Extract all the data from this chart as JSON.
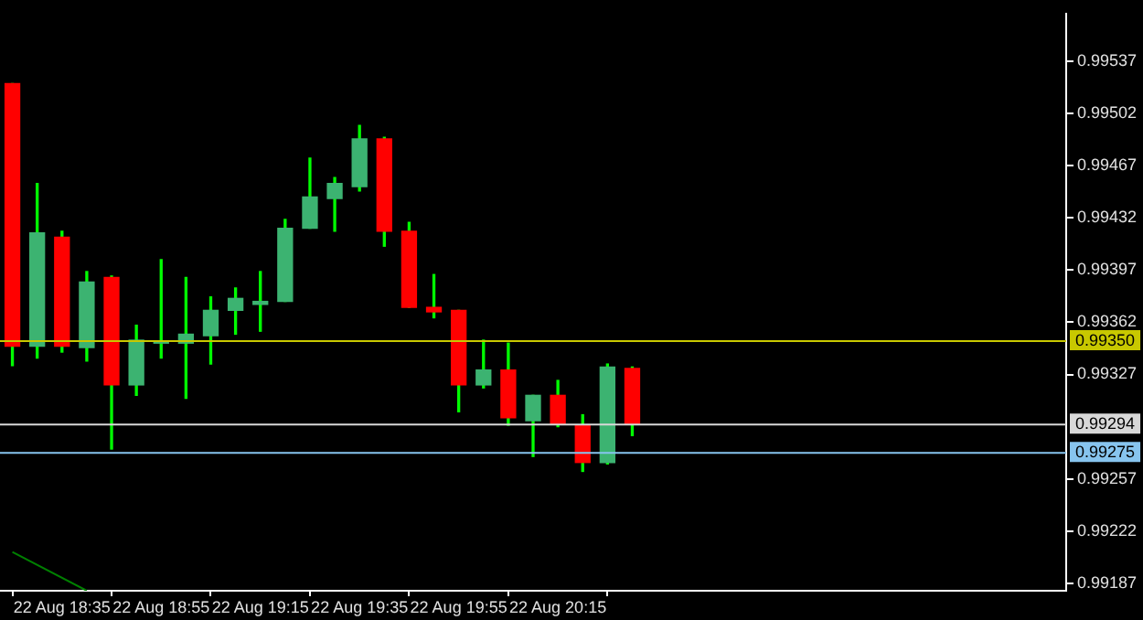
{
  "chart_data": {
    "type": "candlestick",
    "categories": [
      null,
      null,
      "22 Aug 18:35",
      null,
      null,
      null,
      "22 Aug 18:55",
      null,
      null,
      null,
      "22 Aug 19:15",
      null,
      null,
      null,
      "22 Aug 19:35",
      null,
      null,
      null,
      "22 Aug 19:55",
      null,
      null,
      null,
      "22 Aug 20:15",
      null,
      null,
      null,
      null,
      null,
      null,
      null,
      null,
      null,
      null,
      null,
      null,
      null,
      null,
      null,
      null,
      null,
      null,
      null,
      null
    ],
    "ohlc": [
      [
        0.99522,
        0.99522,
        0.99333,
        0.99346
      ],
      [
        0.99346,
        0.99455,
        0.99338,
        0.99422
      ],
      [
        0.99419,
        0.99423,
        0.99342,
        0.99346
      ],
      [
        0.99345,
        0.99396,
        0.99336,
        0.99389
      ],
      [
        0.99392,
        0.99393,
        0.99277,
        0.9932
      ],
      [
        0.9932,
        0.9936,
        0.99313,
        0.9935
      ],
      [
        0.99348,
        0.99404,
        0.99338,
        0.99349
      ],
      [
        0.99348,
        0.99392,
        0.99311,
        0.99354
      ],
      [
        0.99353,
        0.99379,
        0.99334,
        0.9937
      ],
      [
        0.9937,
        0.99385,
        0.99354,
        0.99378
      ],
      [
        0.99374,
        0.99396,
        0.99356,
        0.99376
      ],
      [
        0.99376,
        0.99431,
        0.99376,
        0.99425
      ],
      [
        0.99425,
        0.99472,
        0.99425,
        0.99446
      ],
      [
        0.99445,
        0.99459,
        0.99423,
        0.99455
      ],
      [
        0.99453,
        0.99494,
        0.9945,
        0.99485
      ],
      [
        0.99485,
        0.99486,
        0.99413,
        0.99423
      ],
      [
        0.99423,
        0.99429,
        0.99372,
        0.99372
      ],
      [
        0.99372,
        0.99394,
        0.99365,
        0.99369
      ],
      [
        0.9937,
        0.9937,
        0.99302,
        0.9932
      ],
      [
        0.9932,
        0.9935,
        0.99318,
        0.9933
      ],
      [
        0.9933,
        0.99348,
        0.99293,
        0.99298
      ],
      [
        0.99296,
        0.99313,
        0.99272,
        0.99313
      ],
      [
        0.99313,
        0.99323,
        0.99292,
        0.99294
      ],
      [
        0.99293,
        0.993,
        0.99262,
        0.99268
      ],
      [
        0.99268,
        0.99334,
        0.99267,
        0.99332
      ],
      [
        0.99331,
        0.99332,
        0.99286,
        0.99294
      ],
      null,
      null,
      null,
      null,
      null,
      null,
      null,
      null,
      null,
      null,
      null,
      null,
      null,
      null,
      null,
      null,
      null
    ],
    "colors": [
      "#ff0000",
      "#3cb371",
      "#ff0000",
      "#3cb371",
      "#ff0000",
      "#3cb371",
      "#3cb371",
      "#3cb371",
      "#3cb371",
      "#3cb371",
      "#3cb371",
      "#3cb371",
      "#3cb371",
      "#3cb371",
      "#3cb371",
      "#ff0000",
      "#ff0000",
      "#ff0000",
      "#ff0000",
      "#3cb371",
      "#ff0000",
      "#3cb371",
      "#ff0000",
      "#ff0000",
      "#3cb371",
      "#ff0000",
      null,
      null,
      null,
      null,
      null,
      null,
      null,
      null,
      null,
      null,
      null,
      null,
      null,
      null,
      null,
      null,
      null
    ],
    "series": [
      {
        "type": "line",
        "color": "#008000",
        "values": [
          0.99208,
          null,
          null,
          0.99182,
          null,
          null,
          null,
          null,
          null,
          null,
          null,
          null,
          null,
          null,
          null,
          null,
          null,
          null,
          null,
          null,
          null,
          null,
          null,
          null,
          null,
          null,
          null,
          null,
          null,
          null,
          null,
          null,
          null,
          null,
          null,
          null,
          null,
          null,
          null,
          null,
          null,
          null,
          null
        ]
      }
    ],
    "ylim": [
      0.99182,
      0.99569
    ],
    "yticks": [
      0.99187,
      0.99222,
      0.99257,
      0.99327,
      0.99362,
      0.99397,
      0.99432,
      0.99467,
      0.99502,
      0.99537
    ],
    "grid": false,
    "ref_lines": [
      {
        "axis": "y",
        "value": 0.9935,
        "label": "0.99350",
        "color": "#c8c800"
      },
      {
        "axis": "y",
        "value": 0.99294,
        "label": "0.99294",
        "color": "#d8d8d8"
      },
      {
        "axis": "y",
        "value": 0.99275,
        "label": "0.99275",
        "color": "#87c4ee"
      }
    ]
  }
}
